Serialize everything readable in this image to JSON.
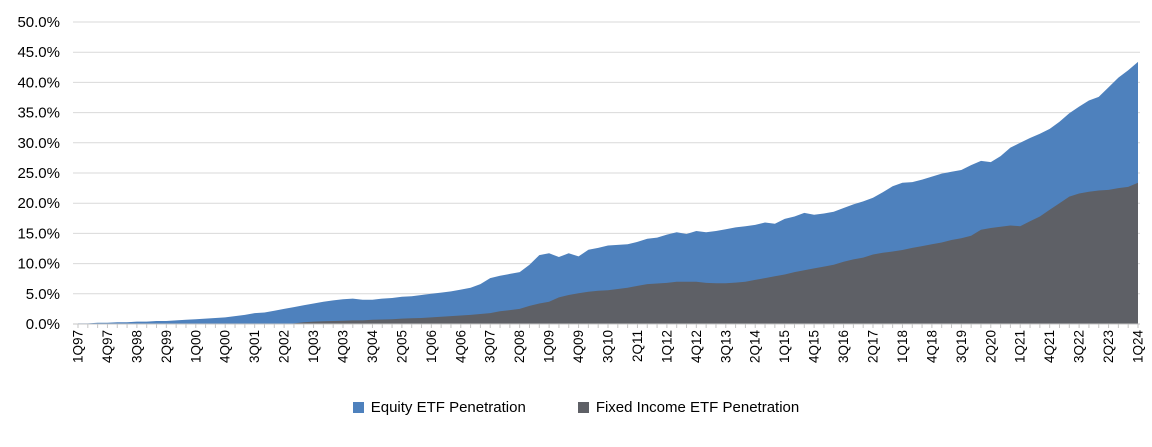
{
  "chart_data": {
    "type": "area",
    "overlapping_series": true,
    "grid": "horizontal",
    "legend_position": "bottom",
    "ylim": [
      0,
      50
    ],
    "y_ticks": [
      0,
      5,
      10,
      15,
      20,
      25,
      30,
      35,
      40,
      45,
      50
    ],
    "y_tick_labels": [
      "0.0%",
      "5.0%",
      "10.0%",
      "15.0%",
      "20.0%",
      "25.0%",
      "30.0%",
      "35.0%",
      "40.0%",
      "45.0%",
      "50.0%"
    ],
    "x_label_every": 3,
    "categories": [
      "1Q97",
      "2Q97",
      "3Q97",
      "4Q97",
      "1Q98",
      "2Q98",
      "3Q98",
      "4Q98",
      "1Q99",
      "2Q99",
      "3Q99",
      "4Q99",
      "1Q00",
      "2Q00",
      "3Q00",
      "4Q00",
      "1Q01",
      "2Q01",
      "3Q01",
      "4Q01",
      "1Q02",
      "2Q02",
      "3Q02",
      "4Q02",
      "1Q03",
      "2Q03",
      "3Q03",
      "4Q03",
      "1Q04",
      "2Q04",
      "3Q04",
      "4Q04",
      "1Q05",
      "2Q05",
      "3Q05",
      "4Q05",
      "1Q06",
      "2Q06",
      "3Q06",
      "4Q06",
      "1Q07",
      "2Q07",
      "3Q07",
      "4Q07",
      "1Q08",
      "2Q08",
      "3Q08",
      "4Q08",
      "1Q09",
      "2Q09",
      "3Q09",
      "4Q09",
      "1Q10",
      "2Q10",
      "3Q10",
      "4Q10",
      "1Q11",
      "2Q11",
      "3Q11",
      "4Q11",
      "1Q12",
      "2Q12",
      "3Q12",
      "4Q12",
      "1Q13",
      "2Q13",
      "3Q13",
      "4Q13",
      "1Q14",
      "2Q14",
      "3Q14",
      "4Q14",
      "1Q15",
      "2Q15",
      "3Q15",
      "4Q15",
      "1Q16",
      "2Q16",
      "3Q16",
      "4Q16",
      "1Q17",
      "2Q17",
      "3Q17",
      "4Q17",
      "1Q18",
      "2Q18",
      "3Q18",
      "4Q18",
      "1Q19",
      "2Q19",
      "3Q19",
      "4Q19",
      "1Q20",
      "2Q20",
      "3Q20",
      "4Q20",
      "1Q21",
      "2Q21",
      "3Q21",
      "4Q21",
      "1Q22",
      "2Q22",
      "3Q22",
      "4Q22",
      "1Q23",
      "2Q23",
      "3Q23",
      "4Q23",
      "1Q24"
    ],
    "series": [
      {
        "name": "Equity ETF Penetration",
        "color": "#4e81bd",
        "values": [
          0.1,
          0.1,
          0.2,
          0.2,
          0.3,
          0.3,
          0.4,
          0.4,
          0.5,
          0.5,
          0.6,
          0.7,
          0.8,
          0.9,
          1.0,
          1.1,
          1.3,
          1.5,
          1.8,
          1.9,
          2.2,
          2.5,
          2.8,
          3.1,
          3.4,
          3.7,
          3.9,
          4.1,
          4.2,
          4.0,
          4.0,
          4.2,
          4.3,
          4.5,
          4.6,
          4.8,
          5.0,
          5.2,
          5.4,
          5.7,
          6.0,
          6.6,
          7.6,
          8.0,
          8.3,
          8.6,
          9.8,
          11.4,
          11.7,
          11.1,
          11.7,
          11.2,
          12.3,
          12.6,
          13.0,
          13.1,
          13.2,
          13.6,
          14.1,
          14.3,
          14.8,
          15.2,
          14.9,
          15.4,
          15.2,
          15.4,
          15.7,
          16.0,
          16.2,
          16.4,
          16.8,
          16.6,
          17.4,
          17.8,
          18.4,
          18.1,
          18.3,
          18.6,
          19.2,
          19.8,
          20.3,
          20.9,
          21.8,
          22.8,
          23.4,
          23.5,
          23.9,
          24.4,
          24.9,
          25.2,
          25.5,
          26.3,
          27.0,
          26.8,
          27.8,
          29.2,
          30.0,
          30.8,
          31.5,
          32.3,
          33.5,
          34.9,
          36.0,
          37.0,
          37.6,
          39.2,
          40.8,
          42.0,
          43.4
        ]
      },
      {
        "name": "Fixed Income ETF Penetration",
        "color": "#5e6066",
        "values": [
          0.0,
          0.0,
          0.0,
          0.0,
          0.0,
          0.0,
          0.0,
          0.0,
          0.0,
          0.0,
          0.0,
          0.0,
          0.0,
          0.0,
          0.0,
          0.0,
          0.0,
          0.0,
          0.0,
          0.0,
          0.0,
          0.0,
          0.1,
          0.3,
          0.4,
          0.45,
          0.5,
          0.55,
          0.6,
          0.6,
          0.7,
          0.75,
          0.8,
          0.9,
          0.95,
          1.0,
          1.1,
          1.2,
          1.3,
          1.4,
          1.5,
          1.65,
          1.8,
          2.1,
          2.3,
          2.5,
          3.0,
          3.4,
          3.7,
          4.4,
          4.8,
          5.1,
          5.35,
          5.5,
          5.6,
          5.8,
          6.0,
          6.3,
          6.6,
          6.7,
          6.8,
          7.0,
          7.0,
          7.0,
          6.8,
          6.75,
          6.75,
          6.85,
          7.0,
          7.3,
          7.6,
          7.9,
          8.2,
          8.6,
          8.9,
          9.2,
          9.5,
          9.8,
          10.3,
          10.7,
          11.0,
          11.5,
          11.8,
          12.0,
          12.25,
          12.6,
          12.9,
          13.2,
          13.5,
          13.9,
          14.2,
          14.6,
          15.6,
          15.9,
          16.1,
          16.3,
          16.2,
          17.0,
          17.8,
          18.9,
          20.0,
          21.1,
          21.6,
          21.9,
          22.1,
          22.2,
          22.5,
          22.7,
          23.4
        ]
      }
    ],
    "colors": {
      "gridline": "#d9d9d9",
      "axis": "#c6c6c6",
      "tick": "#c6c6c6",
      "text": "#000000",
      "background": "#ffffff"
    }
  }
}
